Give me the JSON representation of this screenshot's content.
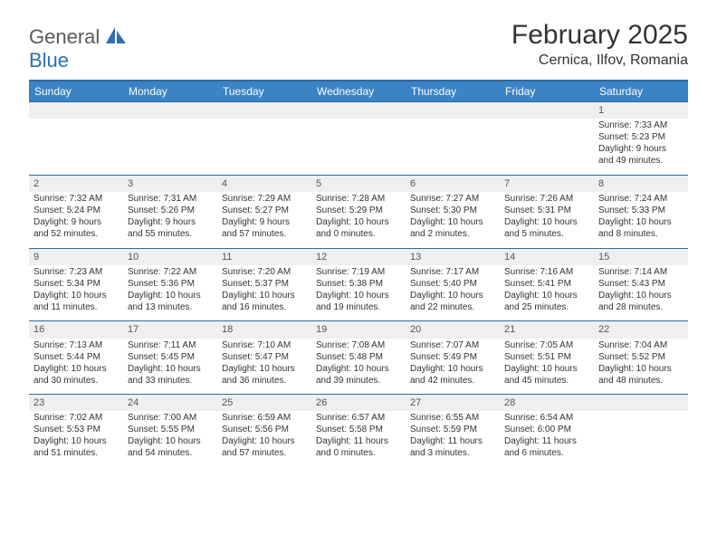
{
  "logo": {
    "word1": "General",
    "word2": "Blue"
  },
  "title": "February 2025",
  "location": "Cernica, Ilfov, Romania",
  "colors": {
    "header_bg": "#3a83c5",
    "header_border": "#2e6ba3",
    "daynum_bg": "#efefef",
    "text": "#333333",
    "logo_gray": "#5a5a5a",
    "logo_blue": "#2f6fb3"
  },
  "weekdays": [
    "Sunday",
    "Monday",
    "Tuesday",
    "Wednesday",
    "Thursday",
    "Friday",
    "Saturday"
  ],
  "weeks": [
    [
      {
        "n": "",
        "l1": "",
        "l2": "",
        "l3": "",
        "l4": ""
      },
      {
        "n": "",
        "l1": "",
        "l2": "",
        "l3": "",
        "l4": ""
      },
      {
        "n": "",
        "l1": "",
        "l2": "",
        "l3": "",
        "l4": ""
      },
      {
        "n": "",
        "l1": "",
        "l2": "",
        "l3": "",
        "l4": ""
      },
      {
        "n": "",
        "l1": "",
        "l2": "",
        "l3": "",
        "l4": ""
      },
      {
        "n": "",
        "l1": "",
        "l2": "",
        "l3": "",
        "l4": ""
      },
      {
        "n": "1",
        "l1": "Sunrise: 7:33 AM",
        "l2": "Sunset: 5:23 PM",
        "l3": "Daylight: 9 hours",
        "l4": "and 49 minutes."
      }
    ],
    [
      {
        "n": "2",
        "l1": "Sunrise: 7:32 AM",
        "l2": "Sunset: 5:24 PM",
        "l3": "Daylight: 9 hours",
        "l4": "and 52 minutes."
      },
      {
        "n": "3",
        "l1": "Sunrise: 7:31 AM",
        "l2": "Sunset: 5:26 PM",
        "l3": "Daylight: 9 hours",
        "l4": "and 55 minutes."
      },
      {
        "n": "4",
        "l1": "Sunrise: 7:29 AM",
        "l2": "Sunset: 5:27 PM",
        "l3": "Daylight: 9 hours",
        "l4": "and 57 minutes."
      },
      {
        "n": "5",
        "l1": "Sunrise: 7:28 AM",
        "l2": "Sunset: 5:29 PM",
        "l3": "Daylight: 10 hours",
        "l4": "and 0 minutes."
      },
      {
        "n": "6",
        "l1": "Sunrise: 7:27 AM",
        "l2": "Sunset: 5:30 PM",
        "l3": "Daylight: 10 hours",
        "l4": "and 2 minutes."
      },
      {
        "n": "7",
        "l1": "Sunrise: 7:26 AM",
        "l2": "Sunset: 5:31 PM",
        "l3": "Daylight: 10 hours",
        "l4": "and 5 minutes."
      },
      {
        "n": "8",
        "l1": "Sunrise: 7:24 AM",
        "l2": "Sunset: 5:33 PM",
        "l3": "Daylight: 10 hours",
        "l4": "and 8 minutes."
      }
    ],
    [
      {
        "n": "9",
        "l1": "Sunrise: 7:23 AM",
        "l2": "Sunset: 5:34 PM",
        "l3": "Daylight: 10 hours",
        "l4": "and 11 minutes."
      },
      {
        "n": "10",
        "l1": "Sunrise: 7:22 AM",
        "l2": "Sunset: 5:36 PM",
        "l3": "Daylight: 10 hours",
        "l4": "and 13 minutes."
      },
      {
        "n": "11",
        "l1": "Sunrise: 7:20 AM",
        "l2": "Sunset: 5:37 PM",
        "l3": "Daylight: 10 hours",
        "l4": "and 16 minutes."
      },
      {
        "n": "12",
        "l1": "Sunrise: 7:19 AM",
        "l2": "Sunset: 5:38 PM",
        "l3": "Daylight: 10 hours",
        "l4": "and 19 minutes."
      },
      {
        "n": "13",
        "l1": "Sunrise: 7:17 AM",
        "l2": "Sunset: 5:40 PM",
        "l3": "Daylight: 10 hours",
        "l4": "and 22 minutes."
      },
      {
        "n": "14",
        "l1": "Sunrise: 7:16 AM",
        "l2": "Sunset: 5:41 PM",
        "l3": "Daylight: 10 hours",
        "l4": "and 25 minutes."
      },
      {
        "n": "15",
        "l1": "Sunrise: 7:14 AM",
        "l2": "Sunset: 5:43 PM",
        "l3": "Daylight: 10 hours",
        "l4": "and 28 minutes."
      }
    ],
    [
      {
        "n": "16",
        "l1": "Sunrise: 7:13 AM",
        "l2": "Sunset: 5:44 PM",
        "l3": "Daylight: 10 hours",
        "l4": "and 30 minutes."
      },
      {
        "n": "17",
        "l1": "Sunrise: 7:11 AM",
        "l2": "Sunset: 5:45 PM",
        "l3": "Daylight: 10 hours",
        "l4": "and 33 minutes."
      },
      {
        "n": "18",
        "l1": "Sunrise: 7:10 AM",
        "l2": "Sunset: 5:47 PM",
        "l3": "Daylight: 10 hours",
        "l4": "and 36 minutes."
      },
      {
        "n": "19",
        "l1": "Sunrise: 7:08 AM",
        "l2": "Sunset: 5:48 PM",
        "l3": "Daylight: 10 hours",
        "l4": "and 39 minutes."
      },
      {
        "n": "20",
        "l1": "Sunrise: 7:07 AM",
        "l2": "Sunset: 5:49 PM",
        "l3": "Daylight: 10 hours",
        "l4": "and 42 minutes."
      },
      {
        "n": "21",
        "l1": "Sunrise: 7:05 AM",
        "l2": "Sunset: 5:51 PM",
        "l3": "Daylight: 10 hours",
        "l4": "and 45 minutes."
      },
      {
        "n": "22",
        "l1": "Sunrise: 7:04 AM",
        "l2": "Sunset: 5:52 PM",
        "l3": "Daylight: 10 hours",
        "l4": "and 48 minutes."
      }
    ],
    [
      {
        "n": "23",
        "l1": "Sunrise: 7:02 AM",
        "l2": "Sunset: 5:53 PM",
        "l3": "Daylight: 10 hours",
        "l4": "and 51 minutes."
      },
      {
        "n": "24",
        "l1": "Sunrise: 7:00 AM",
        "l2": "Sunset: 5:55 PM",
        "l3": "Daylight: 10 hours",
        "l4": "and 54 minutes."
      },
      {
        "n": "25",
        "l1": "Sunrise: 6:59 AM",
        "l2": "Sunset: 5:56 PM",
        "l3": "Daylight: 10 hours",
        "l4": "and 57 minutes."
      },
      {
        "n": "26",
        "l1": "Sunrise: 6:57 AM",
        "l2": "Sunset: 5:58 PM",
        "l3": "Daylight: 11 hours",
        "l4": "and 0 minutes."
      },
      {
        "n": "27",
        "l1": "Sunrise: 6:55 AM",
        "l2": "Sunset: 5:59 PM",
        "l3": "Daylight: 11 hours",
        "l4": "and 3 minutes."
      },
      {
        "n": "28",
        "l1": "Sunrise: 6:54 AM",
        "l2": "Sunset: 6:00 PM",
        "l3": "Daylight: 11 hours",
        "l4": "and 6 minutes."
      },
      {
        "n": "",
        "l1": "",
        "l2": "",
        "l3": "",
        "l4": ""
      }
    ]
  ]
}
